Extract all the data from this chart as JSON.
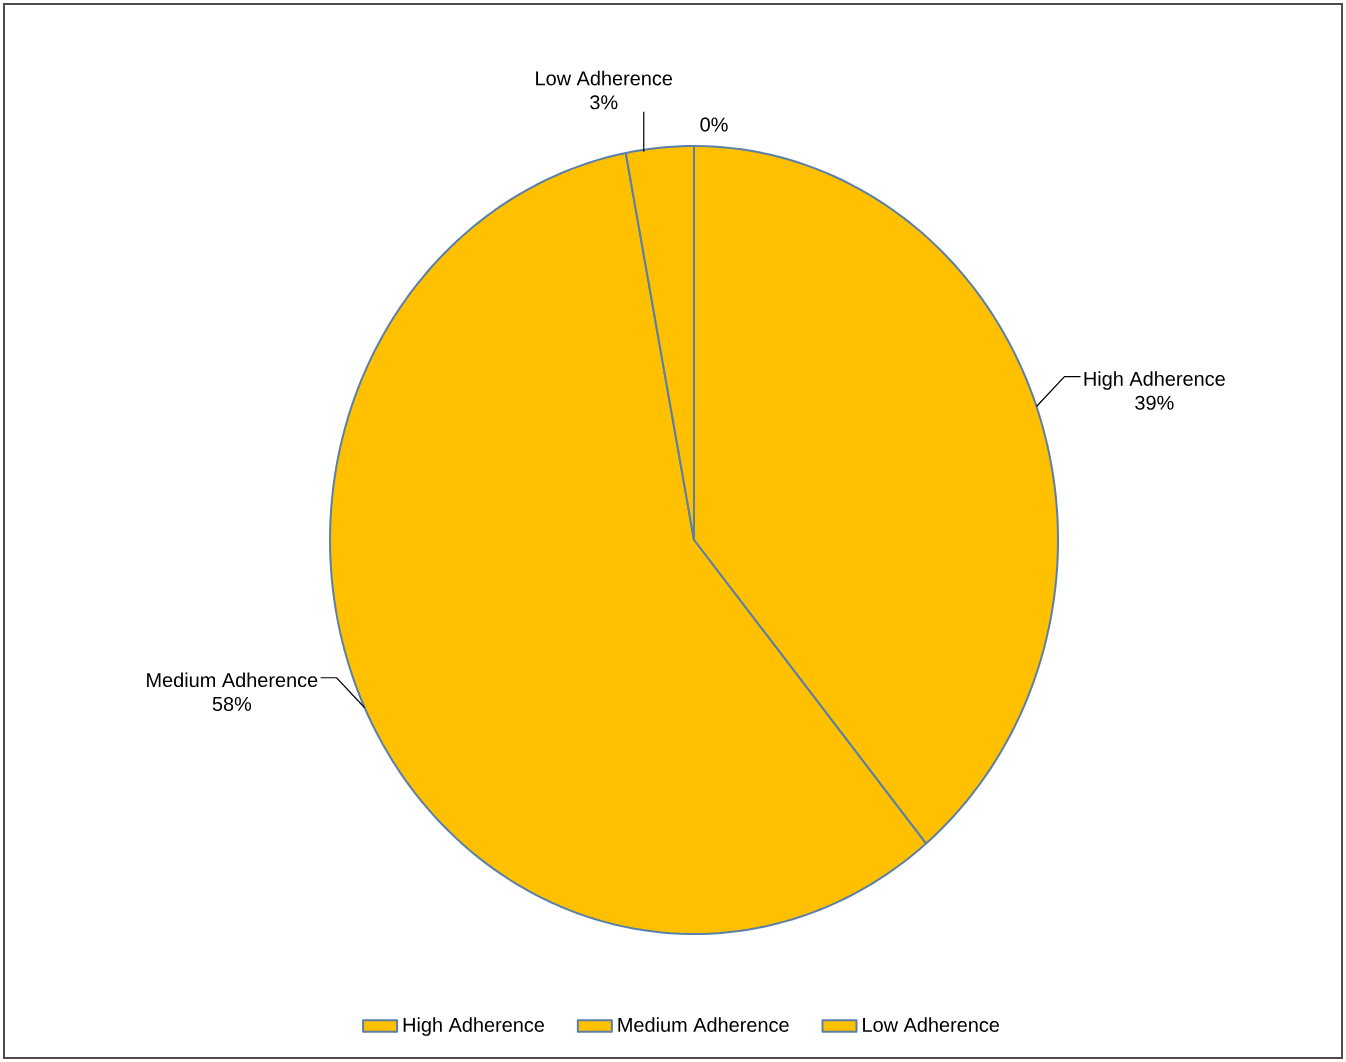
{
  "chart_data": {
    "type": "pie",
    "categories": [
      "High Adherence",
      "Medium Adherence",
      "Low Adherence",
      null
    ],
    "values": [
      39,
      58,
      3,
      0
    ],
    "value_labels": [
      "39%",
      "58%",
      "3%",
      "0%"
    ],
    "colors": [
      "#ffc000",
      "#ffc000",
      "#ffc000",
      "#ffc000"
    ],
    "legend": "bottom"
  }
}
